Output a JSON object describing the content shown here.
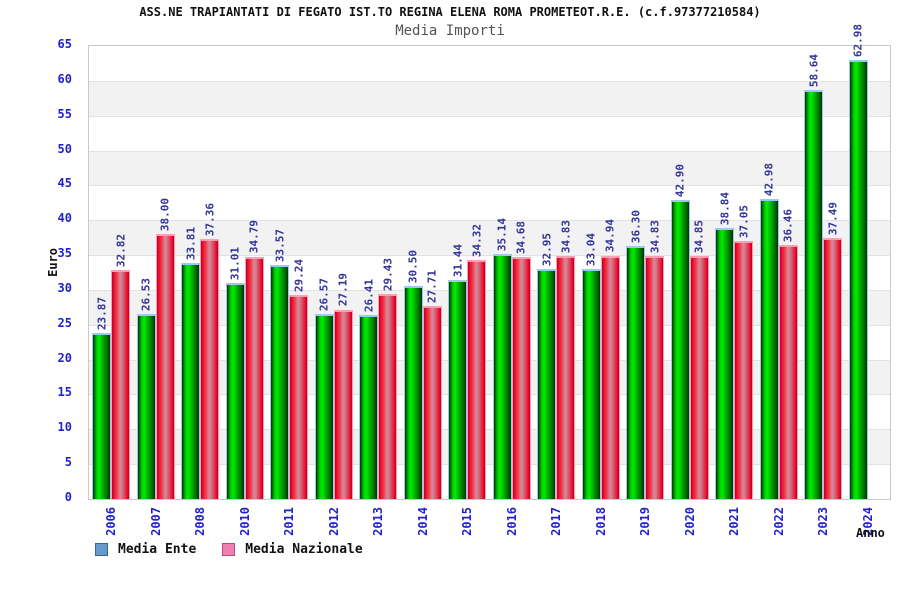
{
  "header": {
    "title": "ASS.NE TRAPIANTATI DI FEGATO IST.TO REGINA ELENA ROMA PROMETEOT.R.E. (c.f.97377210584)",
    "subtitle": "Media Importi"
  },
  "chart_data": {
    "type": "bar",
    "title": "ASS.NE TRAPIANTATI DI FEGATO IST.TO REGINA ELENA ROMA PROMETEOT.R.E. (c.f.97377210584)",
    "subtitle": "Media Importi",
    "xlabel": "Anno",
    "ylabel": "Euro",
    "ylim": [
      0,
      65
    ],
    "ytick_step": 5,
    "grid": "alternating-horizontal-bands",
    "legend_position": "bottom-left",
    "value_labels": "rotated-90-above-bars, two decimals",
    "categories": [
      "2006",
      "2007",
      "2008",
      "2010",
      "2011",
      "2012",
      "2013",
      "2014",
      "2015",
      "2016",
      "2017",
      "2018",
      "2019",
      "2020",
      "2021",
      "2022",
      "2023",
      "2024"
    ],
    "series": [
      {
        "name": "Media Ente",
        "bar_style": "green-gradient",
        "legend_color": "#6699cc",
        "values": [
          23.87,
          26.53,
          33.81,
          31.01,
          33.57,
          26.57,
          26.41,
          30.5,
          31.44,
          35.14,
          32.95,
          33.04,
          36.3,
          42.9,
          38.84,
          42.98,
          58.64,
          62.98
        ]
      },
      {
        "name": "Media Nazionale",
        "bar_style": "red-gradient",
        "legend_color": "#ee7fb0",
        "values": [
          32.82,
          38.0,
          37.36,
          34.79,
          29.24,
          27.19,
          29.43,
          27.71,
          34.32,
          34.68,
          34.83,
          34.94,
          34.83,
          34.85,
          37.05,
          36.46,
          37.49,
          null
        ]
      }
    ]
  },
  "colors": {
    "axis_text": "#2222cc",
    "value_label_text": "#333399",
    "title_text": "#111111",
    "subtitle_text": "#555555",
    "band_gray": "#f2f2f2",
    "plot_border": "#c9c9c9",
    "green_bar_core": "#00ee00",
    "green_bar_edge": "#003300",
    "green_bar_cap": "#9ec7f2",
    "red_bar_core": "#dd8899",
    "red_bar_edge": "#ee1133",
    "red_bar_cap": "#ff9db5"
  }
}
